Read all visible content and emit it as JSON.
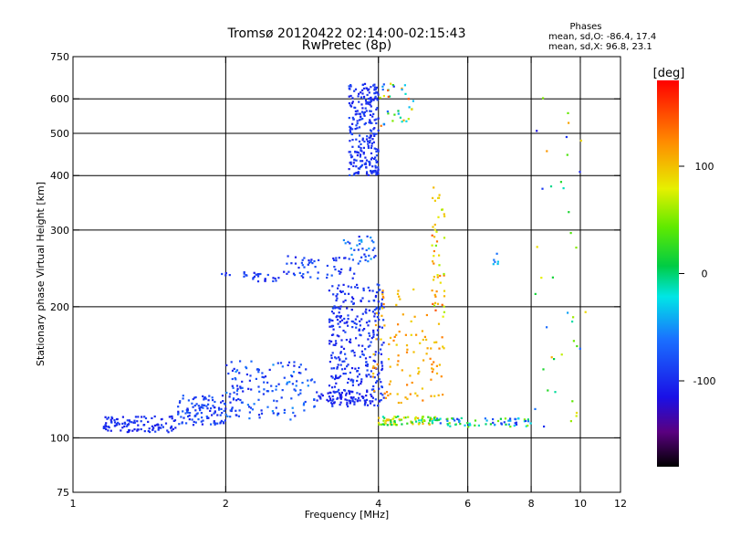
{
  "chart_data": {
    "type": "scatter",
    "title": "Tromsø 20120422 02:14:00-02:15:43",
    "subtitle": "RwPretec (8p)",
    "xlabel": "Frequency [MHz]",
    "ylabel": "Stationary phase Virtual Height [km]",
    "x_scale": "log",
    "y_scale": "log",
    "xlim": [
      1,
      12
    ],
    "ylim": [
      75,
      750
    ],
    "x_ticks": [
      1,
      2,
      4,
      6,
      8,
      10,
      12
    ],
    "x_tick_labels": [
      "1",
      "2",
      "4",
      "6",
      "8",
      "10",
      "12"
    ],
    "y_ticks": [
      75,
      100,
      200,
      300,
      400,
      500,
      600,
      750
    ],
    "y_tick_labels": [
      "75",
      "100",
      "200",
      "300",
      "400",
      "500",
      "600",
      "750"
    ],
    "grid_x": [
      2,
      4,
      6,
      8,
      10
    ],
    "grid_y": [
      100,
      200,
      300,
      400,
      500,
      600
    ],
    "stats": {
      "heading": "Phases",
      "line_o": "mean, sd,O: -86.4, 17.4",
      "line_x": "mean, sd,X:  96.8, 23.1"
    },
    "colorbar": {
      "label": "[deg]",
      "min": -180,
      "max": 180,
      "ticks": [
        100,
        0,
        -100
      ],
      "tick_labels": [
        "100",
        "0",
        "-100"
      ]
    },
    "point_groups": [
      {
        "f": [
          1.15,
          1.6
        ],
        "h": [
          103,
          112
        ],
        "n": 110,
        "phase": [
          -110,
          -85
        ]
      },
      {
        "f": [
          1.6,
          2.0
        ],
        "h": [
          107,
          125
        ],
        "n": 110,
        "phase": [
          -110,
          -70
        ]
      },
      {
        "f": [
          2.0,
          3.0
        ],
        "h": [
          110,
          150
        ],
        "n": 150,
        "phase": [
          -110,
          -50
        ]
      },
      {
        "f": [
          1.95,
          2.6
        ],
        "h": [
          228,
          240
        ],
        "n": 30,
        "phase": [
          -110,
          -80
        ]
      },
      {
        "f": [
          2.6,
          3.6
        ],
        "h": [
          232,
          262
        ],
        "n": 55,
        "phase": [
          -110,
          -70
        ]
      },
      {
        "f": [
          3.4,
          3.95
        ],
        "h": [
          250,
          290
        ],
        "n": 35,
        "phase": [
          -110,
          -40
        ]
      },
      {
        "f": [
          3.2,
          4.1
        ],
        "h": [
          118,
          225
        ],
        "n": 330,
        "phase": [
          -110,
          -80
        ]
      },
      {
        "f": [
          3.0,
          3.9
        ],
        "h": [
          120,
          128
        ],
        "n": 60,
        "phase": [
          -115,
          -95
        ]
      },
      {
        "f": [
          3.5,
          4.0
        ],
        "h": [
          400,
          650
        ],
        "n": 260,
        "phase": [
          -110,
          -80
        ]
      },
      {
        "f": [
          4.0,
          4.7
        ],
        "h": [
          520,
          650
        ],
        "n": 35,
        "phase": [
          -110,
          150
        ]
      },
      {
        "f": [
          3.9,
          5.4
        ],
        "h": [
          120,
          220
        ],
        "n": 110,
        "phase": [
          90,
          130
        ]
      },
      {
        "f": [
          4.0,
          5.2
        ],
        "h": [
          107,
          112
        ],
        "n": 80,
        "phase": [
          -20,
          110
        ]
      },
      {
        "f": [
          5.2,
          8.0
        ],
        "h": [
          106,
          111
        ],
        "n": 70,
        "phase": [
          -100,
          60
        ]
      },
      {
        "f": [
          5.1,
          5.4
        ],
        "h": [
          180,
          380
        ],
        "n": 45,
        "phase": [
          50,
          150
        ]
      },
      {
        "f": [
          6.7,
          6.9
        ],
        "h": [
          250,
          265
        ],
        "n": 6,
        "phase": [
          -80,
          -30
        ]
      },
      {
        "f": [
          8.1,
          10.3
        ],
        "h": [
          95,
          620
        ],
        "n": 40,
        "phase": [
          -120,
          120
        ]
      }
    ]
  }
}
